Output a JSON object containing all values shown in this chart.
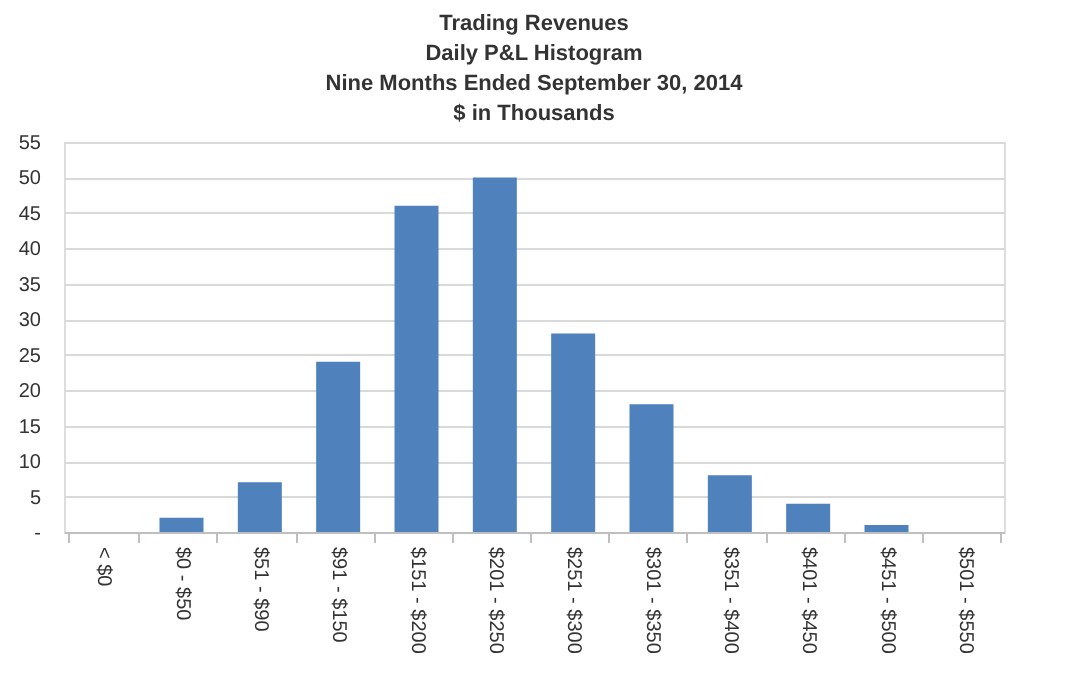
{
  "chart_data": {
    "type": "bar",
    "title": [
      "Trading Revenues",
      "Daily P&L Histogram",
      "Nine Months Ended September 30, 2014",
      "$ in Thousands"
    ],
    "categories": [
      "< $0",
      "$0 - $50",
      "$51 - $90",
      "$91 - $150",
      "$151 - $200",
      "$201 - $250",
      "$251 - $300",
      "$301 - $350",
      "$351 - $400",
      "$401 - $450",
      "$451 - $500",
      "$501 - $550"
    ],
    "values": [
      0,
      2,
      7,
      24,
      46,
      50,
      28,
      18,
      8,
      4,
      1,
      0
    ],
    "color": "#4f81bd",
    "ylim": [
      0,
      55
    ],
    "yticks": [
      {
        "value": 0,
        "label": "-"
      },
      5,
      10,
      15,
      20,
      25,
      30,
      35,
      40,
      45,
      50,
      55
    ],
    "grid": "y"
  }
}
